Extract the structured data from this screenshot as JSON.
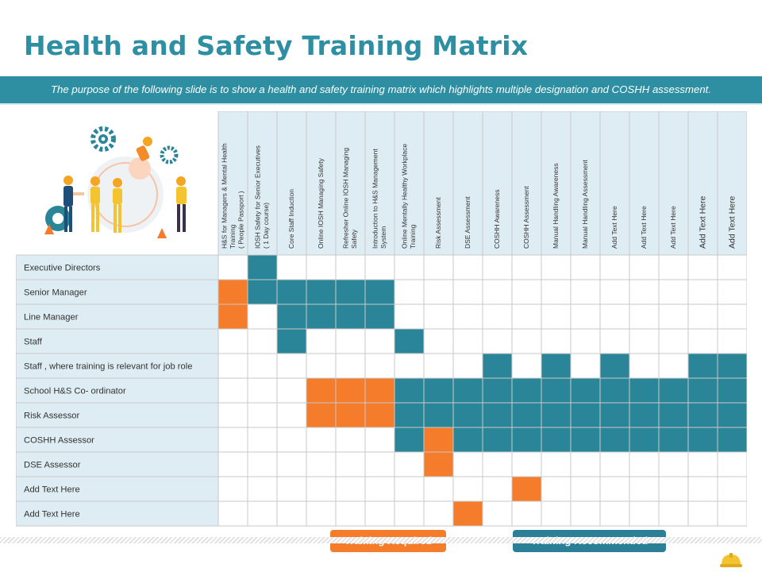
{
  "title": "Health and Safety Training Matrix",
  "subtitle": "The purpose of the following slide is to show a health and safety training matrix which highlights multiple designation and COSHH assessment.",
  "colors": {
    "teal": "#2b8598",
    "orange": "#f47c2b",
    "header_fill": "#deedf3",
    "title": "#2e8fa3"
  },
  "columns": [
    {
      "lines": [
        "H&S for Managers & Mental Health",
        "Training",
        "( People Passport )"
      ],
      "size": 8.5
    },
    {
      "lines": [
        "IOSH Safety for Senior Executives",
        "( 1 Day course)"
      ],
      "size": 8.5
    },
    {
      "lines": [
        "Core Staff Induction"
      ],
      "size": 8.5
    },
    {
      "lines": [
        "Online IOSH Managing Safety"
      ],
      "size": 8.5
    },
    {
      "lines": [
        "Refresher Online IOSH Managing",
        "Safety"
      ],
      "size": 8.5
    },
    {
      "lines": [
        "Introduction to H&S Management",
        "System"
      ],
      "size": 8.5
    },
    {
      "lines": [
        "Online Mentally Healthy Workplace",
        "Training"
      ],
      "size": 8.5
    },
    {
      "lines": [
        "Risk Assessment"
      ],
      "size": 8.5
    },
    {
      "lines": [
        "DSE Assessment"
      ],
      "size": 8.5
    },
    {
      "lines": [
        "COSHH Awareness"
      ],
      "size": 8.5
    },
    {
      "lines": [
        "COSHH Assessment"
      ],
      "size": 8.5
    },
    {
      "lines": [
        "Manual Handling Awareness"
      ],
      "size": 8.5
    },
    {
      "lines": [
        "Manual Handling Assessment"
      ],
      "size": 8.5
    },
    {
      "lines": [
        "Add Text Here"
      ],
      "size": 8.5
    },
    {
      "lines": [
        "Add Text Here"
      ],
      "size": 8.5
    },
    {
      "lines": [
        "Add Text Here"
      ],
      "size": 8.5
    },
    {
      "lines": [
        "Add Text Here"
      ],
      "size": 10.5
    },
    {
      "lines": [
        "Add Text Here"
      ],
      "size": 10.5
    }
  ],
  "rows": [
    {
      "label": "Executive Directors",
      "cells": "-T----------------"
    },
    {
      "label": "Senior Manager",
      "cells": "OTTTTT------------"
    },
    {
      "label": "Line Manager",
      "cells": "O-TTTT------------"
    },
    {
      "label": "Staff",
      "cells": "--T---T-----------"
    },
    {
      "label": "Staff , where training is relevant for job role",
      "cells": "---------T-T-T--TT"
    },
    {
      "label": "School H&S Co- ordinator",
      "cells": "---OOOTTTTTTTTTTTT"
    },
    {
      "label": "Risk Assessor",
      "cells": "---OOOTTTTTTTTTTTT"
    },
    {
      "label": "COSHH Assessor",
      "cells": "------TOTTTTTTTTTT"
    },
    {
      "label": "DSE Assessor",
      "cells": "-------O----------"
    },
    {
      "label": "Add Text Here",
      "cells": "----------O-------"
    },
    {
      "label": "Add Text Here",
      "cells": "--------O---------"
    }
  ],
  "legend": {
    "required": "Training Required",
    "recommended": "Training Recommended"
  }
}
